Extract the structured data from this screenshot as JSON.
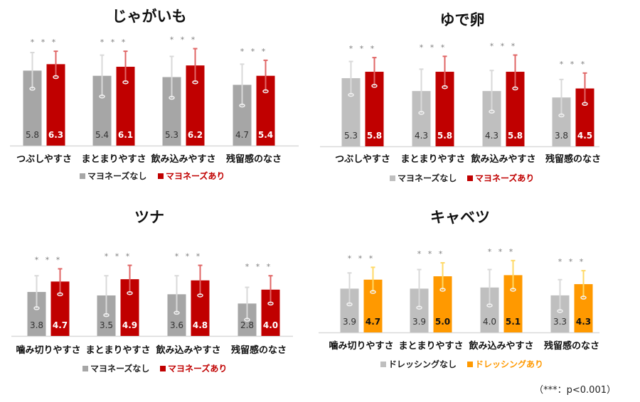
{
  "colors": {
    "gray_dark": "#a6a6a6",
    "gray_light": "#bfbfbf",
    "red": "#c00000",
    "orange": "#ff9900",
    "axis": "#d9d9d9",
    "star": "#7f7f7f",
    "red_error": "#e06666",
    "orange_error": "#ffd966",
    "gray_error": "#d9d9d9"
  },
  "chart_data": [
    {
      "type": "bar",
      "title": "じゃがいも",
      "categories": [
        "つぶしやすさ",
        "まとまりやすさ",
        "飲み込みやすさ",
        "残留感のなさ"
      ],
      "series": [
        {
          "name": "マヨネーズなし",
          "values": [
            5.8,
            5.4,
            5.3,
            4.7
          ],
          "error": [
            1.4,
            1.6,
            1.6,
            1.6
          ],
          "color": "#a6a6a6"
        },
        {
          "name": "マヨネーズあり",
          "values": [
            6.3,
            6.1,
            6.2,
            5.4
          ],
          "error": [
            1.0,
            1.2,
            1.3,
            1.2
          ],
          "color": "#c00000"
        }
      ],
      "significance": [
        "***",
        "***",
        "***",
        "***"
      ],
      "legend_position": "bottom",
      "xlabel": "",
      "ylabel": "",
      "ylim": [
        0,
        8
      ],
      "grid": false
    },
    {
      "type": "bar",
      "title": "ゆで卵",
      "categories": [
        "つぶしやすさ",
        "まとまりやすさ",
        "飲み込みやすさ",
        "残留感のなさ"
      ],
      "series": [
        {
          "name": "マヨネーズなし",
          "values": [
            5.3,
            4.3,
            4.3,
            3.8
          ],
          "error": [
            1.3,
            1.7,
            1.6,
            1.4
          ],
          "color": "#bfbfbf"
        },
        {
          "name": "マヨネーズあり",
          "values": [
            5.8,
            5.8,
            5.8,
            4.5
          ],
          "error": [
            1.1,
            1.2,
            1.3,
            1.2
          ],
          "color": "#c00000"
        }
      ],
      "significance": [
        "***",
        "***",
        "***",
        "***"
      ],
      "legend_position": "bottom",
      "xlabel": "",
      "ylabel": "",
      "ylim": [
        0,
        8
      ],
      "grid": false
    },
    {
      "type": "bar",
      "title": "ツナ",
      "categories": [
        "噛み切りやすさ",
        "まとまりやすさ",
        "飲み込みやすさ",
        "残留感のなさ"
      ],
      "series": [
        {
          "name": "マヨネーズなし",
          "values": [
            3.8,
            3.5,
            3.6,
            2.8
          ],
          "error": [
            1.4,
            1.7,
            1.6,
            1.4
          ],
          "color": "#a6a6a6"
        },
        {
          "name": "マヨネーズあり",
          "values": [
            4.7,
            4.9,
            4.8,
            4.0
          ],
          "error": [
            1.1,
            1.2,
            1.3,
            1.2
          ],
          "color": "#c00000"
        }
      ],
      "significance": [
        "***",
        "***",
        "***",
        "***"
      ],
      "legend_position": "bottom",
      "xlabel": "",
      "ylabel": "",
      "ylim": [
        0,
        8
      ],
      "grid": false
    },
    {
      "type": "bar",
      "title": "キャベツ",
      "categories": [
        "噛み切りやすさ",
        "まとまりやすさ",
        "飲み込みやすさ",
        "残留感のなさ"
      ],
      "series": [
        {
          "name": "ドレッシングなし",
          "values": [
            3.9,
            3.9,
            4.0,
            3.3
          ],
          "error": [
            1.4,
            1.7,
            1.6,
            1.4
          ],
          "color": "#bfbfbf"
        },
        {
          "name": "ドレッシングあり",
          "values": [
            4.7,
            5.0,
            5.1,
            4.3
          ],
          "error": [
            1.1,
            1.2,
            1.3,
            1.2
          ],
          "color": "#ff9900"
        }
      ],
      "significance": [
        "***",
        "***",
        "***",
        "***"
      ],
      "legend_position": "bottom",
      "xlabel": "",
      "ylabel": "",
      "ylim": [
        0,
        8
      ],
      "grid": false
    }
  ],
  "footnote": "（***：p<0.001）"
}
